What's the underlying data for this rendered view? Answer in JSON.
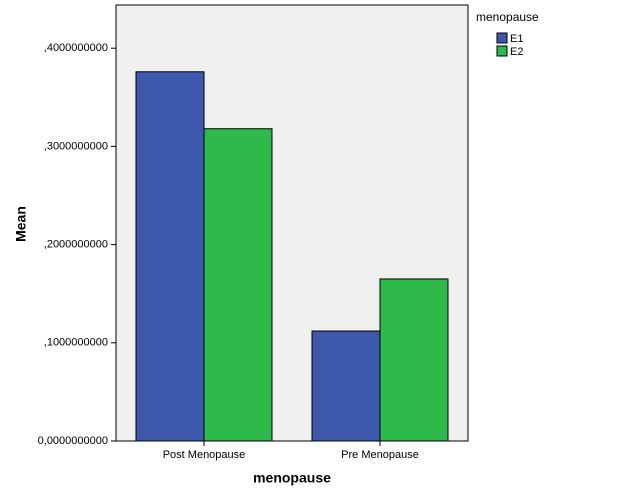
{
  "chart_data": {
    "type": "bar",
    "x_label": "menopause",
    "y_label": "Mean",
    "categories": [
      "Post Menopause",
      "Pre Menopause"
    ],
    "series": [
      {
        "name": "E1",
        "color": "#3e58ac",
        "values": [
          0.376,
          0.112
        ]
      },
      {
        "name": "E2",
        "color": "#2eb94a",
        "values": [
          0.318,
          0.165
        ]
      }
    ],
    "legend_title": "menopause",
    "legend_position": "right",
    "ylim": [
      0,
      0.444
    ],
    "yticks": [
      {
        "value": 0,
        "label": "0,0000000000"
      },
      {
        "value": 0.1,
        "label": ",1000000000"
      },
      {
        "value": 0.2,
        "label": ",2000000000"
      },
      {
        "value": 0.3,
        "label": ",3000000000"
      },
      {
        "value": 0.4,
        "label": ",4000000000"
      }
    ]
  }
}
